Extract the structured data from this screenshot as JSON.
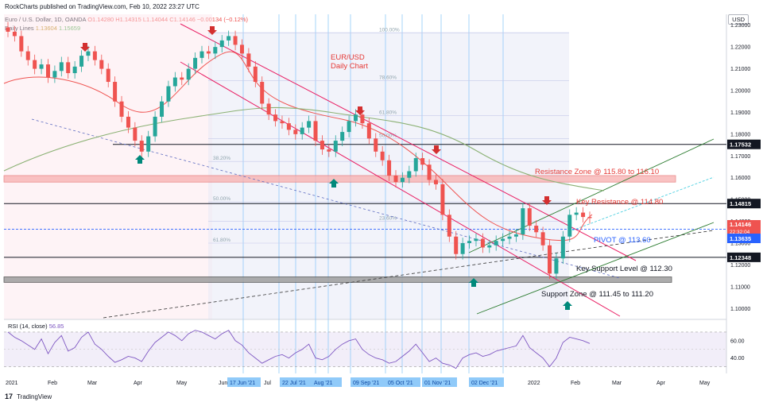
{
  "header": {
    "publisher_line": "RockCharts published on TradingView.com, Feb 10, 2022 23:27 UTC",
    "symbol_line": "Euro / U.S. Dollar, 1D, OANDA",
    "ohlc_line": "O1.14280 H1.14315 L1.14044 C1.14146 −0.00134 (−0.12%)",
    "ma_label": "Daily Lines",
    "ma_value_1": "1.13604",
    "ma_value_2": "1.15659"
  },
  "currency": "USD",
  "chart_title_line1": "EUR/USD",
  "chart_title_line2": "Daily Chart",
  "rsi_label": "RSI (14, close)",
  "rsi_value": "56.85",
  "footer": {
    "logo": "17",
    "brand": "TradingView"
  },
  "colors": {
    "up": "#26a69a",
    "down": "#ef5350",
    "ma20": "#ef5350",
    "ma200": "#8bb174",
    "channel": "#e91e63",
    "rsi": "#7e57c2",
    "arrow_red": "#d32f2f",
    "arrow_green": "#00897b",
    "blue_text": "#2962ff",
    "resistance_text": "#e53935"
  },
  "chart_data": {
    "type": "line",
    "title": "EUR/USD Daily Chart",
    "ylim": [
      1.095,
      1.235
    ],
    "y_ticks": [
      "1.23000",
      "1.22000",
      "1.21000",
      "1.20000",
      "1.19000",
      "1.18000",
      "1.17000",
      "1.16000",
      "1.15000",
      "1.14000",
      "1.13000",
      "1.12000",
      "1.11000",
      "1.10000"
    ],
    "x_ticks": [
      "2021",
      "Feb",
      "Mar",
      "Apr",
      "May",
      "Jun",
      "Jul",
      "Aug",
      "Sep",
      "Oct",
      "Nov",
      "Dec",
      "2022",
      "Feb",
      "Mar",
      "Apr",
      "May"
    ],
    "highlighted_dates": [
      "17 Jun '21",
      "22 Jul '21",
      "Aug '21",
      "09 Sep '21",
      "05 Oct '21",
      "01 Nov '21",
      "02 Dec '21"
    ],
    "price_labels": [
      {
        "text": "1.17532",
        "value": 1.17532,
        "style": "dark"
      },
      {
        "text": "1.14815",
        "value": 1.14815,
        "style": "dark"
      },
      {
        "text": "1.14146",
        "sub": "22:32:04",
        "value": 1.14146,
        "style": "red"
      },
      {
        "text": "1.13635",
        "value": 1.13635,
        "style": "blue"
      },
      {
        "text": "1.12348",
        "value": 1.12348,
        "style": "dark"
      }
    ],
    "fib_levels": [
      {
        "label": "100.00%",
        "value": 1.2265
      },
      {
        "label": "78.60%",
        "value": 1.2045
      },
      {
        "label": "61.80%",
        "value": 1.1885
      },
      {
        "label": "50.00%",
        "value": 1.178
      },
      {
        "label": "38.20%",
        "value": 1.1675
      },
      {
        "label": "50.00%",
        "value": 1.1489
      },
      {
        "label": "23.60%",
        "value": 1.14
      },
      {
        "label": "61.80%",
        "value": 1.13
      }
    ],
    "annotations": [
      {
        "text": "Resistance Zone @ 115.80 to 116.10",
        "kind": "resistance"
      },
      {
        "text": "Key Resistance @ 114.80",
        "kind": "resistance"
      },
      {
        "text": "PIVOT @ 113.60",
        "kind": "pivot"
      },
      {
        "text": "Key Support Level @ 112.30",
        "kind": "support"
      },
      {
        "text": "Support Zone  @ 111.45 to 111.20",
        "kind": "support"
      }
    ],
    "zones": [
      {
        "name": "Resistance Zone",
        "from": 1.158,
        "to": 1.161
      },
      {
        "name": "Support Zone",
        "from": 1.112,
        "to": 1.1145
      }
    ],
    "horizontal_levels": [
      1.17532,
      1.14815,
      1.13635,
      1.12348
    ],
    "series": [
      {
        "name": "EUR/USD",
        "values": [
          1.227,
          1.225,
          1.218,
          1.214,
          1.21,
          1.212,
          1.206,
          1.209,
          1.213,
          1.208,
          1.211,
          1.216,
          1.218,
          1.214,
          1.21,
          1.204,
          1.195,
          1.188,
          1.183,
          1.177,
          1.172,
          1.179,
          1.188,
          1.195,
          1.202,
          1.206,
          1.205,
          1.21,
          1.215,
          1.218,
          1.217,
          1.22,
          1.223,
          1.225,
          1.221,
          1.217,
          1.211,
          1.204,
          1.194,
          1.189,
          1.186,
          1.185,
          1.182,
          1.18,
          1.183,
          1.186,
          1.177,
          1.173,
          1.172,
          1.177,
          1.181,
          1.186,
          1.189,
          1.185,
          1.178,
          1.172,
          1.168,
          1.161,
          1.158,
          1.16,
          1.163,
          1.169,
          1.166,
          1.159,
          1.157,
          1.143,
          1.133,
          1.125,
          1.13,
          1.131,
          1.132,
          1.128,
          1.129,
          1.131,
          1.132,
          1.133,
          1.134,
          1.146,
          1.138,
          1.135,
          1.129,
          1.116,
          1.123,
          1.133,
          1.143,
          1.144,
          1.142,
          1.1415
        ]
      },
      {
        "name": "RSI",
        "values": [
          70,
          64,
          60,
          55,
          50,
          62,
          45,
          58,
          66,
          48,
          52,
          64,
          70,
          56,
          50,
          42,
          35,
          38,
          42,
          40,
          36,
          48,
          58,
          64,
          70,
          66,
          60,
          68,
          72,
          70,
          66,
          62,
          68,
          72,
          60,
          55,
          46,
          40,
          34,
          38,
          42,
          44,
          40,
          46,
          50,
          56,
          40,
          38,
          42,
          50,
          56,
          60,
          62,
          50,
          44,
          40,
          38,
          34,
          36,
          42,
          48,
          56,
          46,
          36,
          40,
          34,
          32,
          28,
          40,
          44,
          46,
          42,
          44,
          48,
          50,
          52,
          54,
          66,
          52,
          46,
          40,
          30,
          40,
          58,
          64,
          62,
          60,
          56.85
        ]
      }
    ],
    "rsi_ticks": [
      "60.00",
      "40.00"
    ]
  }
}
